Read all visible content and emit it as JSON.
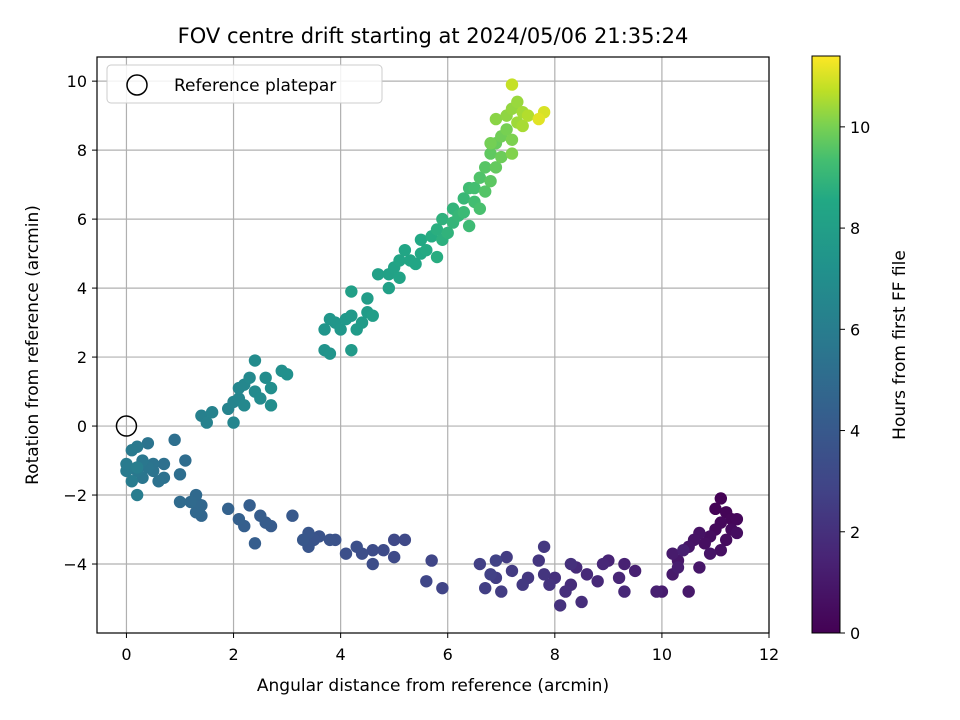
{
  "chart_data": {
    "type": "scatter",
    "title": "FOV centre drift starting at 2024/05/06 21:35:24",
    "xlabel": "Angular distance from reference (arcmin)",
    "ylabel": "Rotation from reference (arcmin)",
    "xlim": [
      -0.55,
      12.0
    ],
    "ylim": [
      -6.0,
      10.7
    ],
    "xticks": [
      0,
      2,
      4,
      6,
      8,
      10,
      12
    ],
    "xtick_labels": [
      "0",
      "2",
      "4",
      "6",
      "8",
      "10",
      "12"
    ],
    "yticks": [
      -4,
      -2,
      0,
      2,
      4,
      6,
      8,
      10
    ],
    "ytick_labels": [
      "−4",
      "−2",
      "0",
      "2",
      "4",
      "6",
      "8",
      "10"
    ],
    "grid": true,
    "legend": {
      "position": "top-left",
      "entries": [
        "Reference platepar"
      ]
    },
    "reference_point": {
      "x": 0,
      "y": 0
    },
    "colorbar": {
      "label": "Hours from first FF file",
      "colormap": "viridis",
      "range": [
        0,
        11.4
      ],
      "ticks": [
        0,
        2,
        4,
        6,
        8,
        10
      ],
      "tick_labels": [
        "0",
        "2",
        "4",
        "6",
        "8",
        "10"
      ]
    },
    "points_note": "each point: [x arcmin, y arcmin, hours]",
    "points": [
      [
        11.1,
        -2.1,
        0.05
      ],
      [
        11.0,
        -2.4,
        0.1
      ],
      [
        11.2,
        -2.5,
        0.15
      ],
      [
        11.3,
        -2.7,
        0.2
      ],
      [
        11.4,
        -2.7,
        0.25
      ],
      [
        11.1,
        -2.8,
        0.3
      ],
      [
        11.0,
        -3.0,
        0.35
      ],
      [
        11.3,
        -3.0,
        0.4
      ],
      [
        11.2,
        -3.3,
        0.45
      ],
      [
        10.9,
        -3.2,
        0.5
      ],
      [
        11.4,
        -3.1,
        0.55
      ],
      [
        10.8,
        -3.4,
        0.6
      ],
      [
        11.1,
        -3.6,
        0.65
      ],
      [
        10.7,
        -3.1,
        0.7
      ],
      [
        10.6,
        -3.3,
        0.75
      ],
      [
        10.9,
        -3.7,
        0.8
      ],
      [
        10.5,
        -3.5,
        0.85
      ],
      [
        10.7,
        -4.1,
        0.9
      ],
      [
        10.3,
        -3.9,
        0.95
      ],
      [
        10.5,
        -4.8,
        1.0
      ],
      [
        10.2,
        -4.3,
        1.05
      ],
      [
        10.2,
        -3.7,
        1.1
      ],
      [
        10.0,
        -4.8,
        1.15
      ],
      [
        10.3,
        -4.1,
        1.2
      ],
      [
        10.4,
        -3.6,
        1.25
      ],
      [
        9.9,
        -4.8,
        1.3
      ],
      [
        9.5,
        -4.2,
        1.35
      ],
      [
        9.3,
        -4.0,
        1.4
      ],
      [
        9.0,
        -3.9,
        1.5
      ],
      [
        9.2,
        -4.4,
        1.55
      ],
      [
        8.9,
        -4.0,
        1.6
      ],
      [
        9.3,
        -4.8,
        1.65
      ],
      [
        8.8,
        -4.5,
        1.7
      ],
      [
        8.6,
        -4.3,
        1.75
      ],
      [
        8.4,
        -4.1,
        1.8
      ],
      [
        8.3,
        -4.6,
        1.85
      ],
      [
        8.5,
        -5.1,
        1.9
      ],
      [
        8.2,
        -4.8,
        1.95
      ],
      [
        8.0,
        -4.4,
        2.0
      ],
      [
        8.3,
        -4.0,
        2.05
      ],
      [
        8.1,
        -5.2,
        2.1
      ],
      [
        7.9,
        -4.6,
        2.15
      ],
      [
        7.8,
        -4.3,
        2.2
      ],
      [
        7.7,
        -3.9,
        2.25
      ],
      [
        7.5,
        -4.4,
        2.3
      ],
      [
        7.8,
        -3.5,
        2.35
      ],
      [
        7.4,
        -4.6,
        2.4
      ],
      [
        7.2,
        -4.2,
        2.45
      ],
      [
        7.1,
        -3.8,
        2.5
      ],
      [
        7.0,
        -4.8,
        2.55
      ],
      [
        6.9,
        -4.4,
        2.6
      ],
      [
        6.7,
        -4.7,
        2.65
      ],
      [
        6.6,
        -4.0,
        2.7
      ],
      [
        6.8,
        -4.3,
        2.75
      ],
      [
        6.9,
        -3.9,
        2.8
      ],
      [
        5.9,
        -4.7,
        2.9
      ],
      [
        5.7,
        -3.9,
        2.95
      ],
      [
        5.6,
        -4.5,
        3.0
      ],
      [
        5.2,
        -3.3,
        3.1
      ],
      [
        5.0,
        -3.3,
        3.15
      ],
      [
        5.0,
        -3.8,
        3.2
      ],
      [
        4.8,
        -3.6,
        3.25
      ],
      [
        4.6,
        -3.6,
        3.3
      ],
      [
        4.6,
        -4.0,
        3.35
      ],
      [
        4.4,
        -3.7,
        3.4
      ],
      [
        4.3,
        -3.5,
        3.45
      ],
      [
        4.1,
        -3.7,
        3.5
      ],
      [
        3.9,
        -3.3,
        3.6
      ],
      [
        3.8,
        -3.3,
        3.65
      ],
      [
        3.6,
        -3.2,
        3.7
      ],
      [
        3.5,
        -3.3,
        3.75
      ],
      [
        3.4,
        -3.5,
        3.8
      ],
      [
        3.4,
        -3.1,
        3.85
      ],
      [
        3.3,
        -3.3,
        3.9
      ],
      [
        3.1,
        -2.6,
        4.0
      ],
      [
        2.7,
        -2.9,
        4.1
      ],
      [
        2.6,
        -2.8,
        4.15
      ],
      [
        2.5,
        -2.6,
        4.2
      ],
      [
        2.4,
        -3.4,
        4.25
      ],
      [
        2.3,
        -2.3,
        4.3
      ],
      [
        2.2,
        -2.9,
        4.35
      ],
      [
        2.1,
        -2.7,
        4.4
      ],
      [
        1.9,
        -2.4,
        4.5
      ],
      [
        1.4,
        -2.6,
        4.7
      ],
      [
        1.4,
        -2.3,
        4.75
      ],
      [
        1.3,
        -2.5,
        4.8
      ],
      [
        1.3,
        -2.2,
        4.85
      ],
      [
        1.3,
        -2.0,
        4.9
      ],
      [
        1.2,
        -2.2,
        4.95
      ],
      [
        1.0,
        -2.2,
        5.0
      ],
      [
        1.1,
        -1.0,
        5.1
      ],
      [
        1.0,
        -1.4,
        5.15
      ],
      [
        0.9,
        -0.4,
        5.2
      ],
      [
        0.7,
        -1.1,
        5.25
      ],
      [
        0.7,
        -1.5,
        5.3
      ],
      [
        0.6,
        -1.6,
        5.35
      ],
      [
        0.5,
        -1.3,
        5.4
      ],
      [
        0.5,
        -1.1,
        5.45
      ],
      [
        0.4,
        -0.5,
        5.5
      ],
      [
        0.4,
        -1.2,
        5.55
      ],
      [
        0.3,
        -1.5,
        5.6
      ],
      [
        0.3,
        -1.0,
        5.65
      ],
      [
        0.2,
        -1.3,
        5.7
      ],
      [
        0.2,
        -0.6,
        5.75
      ],
      [
        0.1,
        -0.7,
        5.8
      ],
      [
        0.0,
        -1.3,
        5.85
      ],
      [
        0.0,
        -1.1,
        5.9
      ],
      [
        0.1,
        -1.6,
        5.95
      ],
      [
        0.2,
        -2.0,
        6.0
      ],
      [
        0.2,
        -1.2,
        6.05
      ],
      [
        1.4,
        0.3,
        6.2
      ],
      [
        1.5,
        0.1,
        6.25
      ],
      [
        1.6,
        0.4,
        6.3
      ],
      [
        1.9,
        0.5,
        6.35
      ],
      [
        2.0,
        0.7,
        6.4
      ],
      [
        2.0,
        0.1,
        6.45
      ],
      [
        2.1,
        0.8,
        6.5
      ],
      [
        2.1,
        1.1,
        6.55
      ],
      [
        2.2,
        1.2,
        6.6
      ],
      [
        2.2,
        0.6,
        6.65
      ],
      [
        2.3,
        1.4,
        6.7
      ],
      [
        2.4,
        1.0,
        6.75
      ],
      [
        2.5,
        0.8,
        6.8
      ],
      [
        2.4,
        1.9,
        6.85
      ],
      [
        2.6,
        1.4,
        6.9
      ],
      [
        2.7,
        0.6,
        6.95
      ],
      [
        2.7,
        1.1,
        7.0
      ],
      [
        2.9,
        1.6,
        7.05
      ],
      [
        3.0,
        1.5,
        7.1
      ],
      [
        3.7,
        2.2,
        7.3
      ],
      [
        3.8,
        2.1,
        7.35
      ],
      [
        3.7,
        2.8,
        7.4
      ],
      [
        3.9,
        3.0,
        7.45
      ],
      [
        3.8,
        3.1,
        7.5
      ],
      [
        4.0,
        2.8,
        7.55
      ],
      [
        4.1,
        3.1,
        7.6
      ],
      [
        4.2,
        3.2,
        7.65
      ],
      [
        4.2,
        2.2,
        7.7
      ],
      [
        4.3,
        2.8,
        7.75
      ],
      [
        4.4,
        3.0,
        7.8
      ],
      [
        4.5,
        3.3,
        7.85
      ],
      [
        4.5,
        3.7,
        7.9
      ],
      [
        4.6,
        3.2,
        7.95
      ],
      [
        4.2,
        3.9,
        8.0
      ],
      [
        4.7,
        4.4,
        8.05
      ],
      [
        4.9,
        4.0,
        8.1
      ],
      [
        4.9,
        4.4,
        8.15
      ],
      [
        5.0,
        4.6,
        8.2
      ],
      [
        5.1,
        4.3,
        8.25
      ],
      [
        5.1,
        4.8,
        8.3
      ],
      [
        5.3,
        4.8,
        8.35
      ],
      [
        5.2,
        5.1,
        8.4
      ],
      [
        5.4,
        4.7,
        8.45
      ],
      [
        5.5,
        5.0,
        8.5
      ],
      [
        5.5,
        5.4,
        8.55
      ],
      [
        5.6,
        5.1,
        8.6
      ],
      [
        5.7,
        5.5,
        8.65
      ],
      [
        5.8,
        4.9,
        8.7
      ],
      [
        5.8,
        5.7,
        8.75
      ],
      [
        5.9,
        5.4,
        8.8
      ],
      [
        5.9,
        6.0,
        8.85
      ],
      [
        6.0,
        5.6,
        8.9
      ],
      [
        6.1,
        6.3,
        8.95
      ],
      [
        6.1,
        5.9,
        9.0
      ],
      [
        6.2,
        6.1,
        9.05
      ],
      [
        6.3,
        6.6,
        9.1
      ],
      [
        6.3,
        6.2,
        9.15
      ],
      [
        6.4,
        5.8,
        9.2
      ],
      [
        6.4,
        6.9,
        9.25
      ],
      [
        6.5,
        6.5,
        9.3
      ],
      [
        6.5,
        6.9,
        9.35
      ],
      [
        6.6,
        6.3,
        9.4
      ],
      [
        6.6,
        7.2,
        9.5
      ],
      [
        6.7,
        6.8,
        9.55
      ],
      [
        6.7,
        7.5,
        9.6
      ],
      [
        6.8,
        7.1,
        9.65
      ],
      [
        6.8,
        7.9,
        9.7
      ],
      [
        6.9,
        7.5,
        9.75
      ],
      [
        6.9,
        8.2,
        9.8
      ],
      [
        7.0,
        7.8,
        9.85
      ],
      [
        7.0,
        8.4,
        9.9
      ],
      [
        6.8,
        8.2,
        9.95
      ],
      [
        7.1,
        8.6,
        10.0
      ],
      [
        7.2,
        8.3,
        10.05
      ],
      [
        7.2,
        7.9,
        10.1
      ],
      [
        6.9,
        8.9,
        10.2
      ],
      [
        7.1,
        9.0,
        10.25
      ],
      [
        7.2,
        9.2,
        10.3
      ],
      [
        7.3,
        9.4,
        10.35
      ],
      [
        7.3,
        8.8,
        10.4
      ],
      [
        7.4,
        9.1,
        10.45
      ],
      [
        7.4,
        8.7,
        10.5
      ],
      [
        7.5,
        9.0,
        10.6
      ],
      [
        7.2,
        9.9,
        10.8
      ],
      [
        7.8,
        9.1,
        11.0
      ],
      [
        7.7,
        8.9,
        11.1
      ]
    ]
  }
}
